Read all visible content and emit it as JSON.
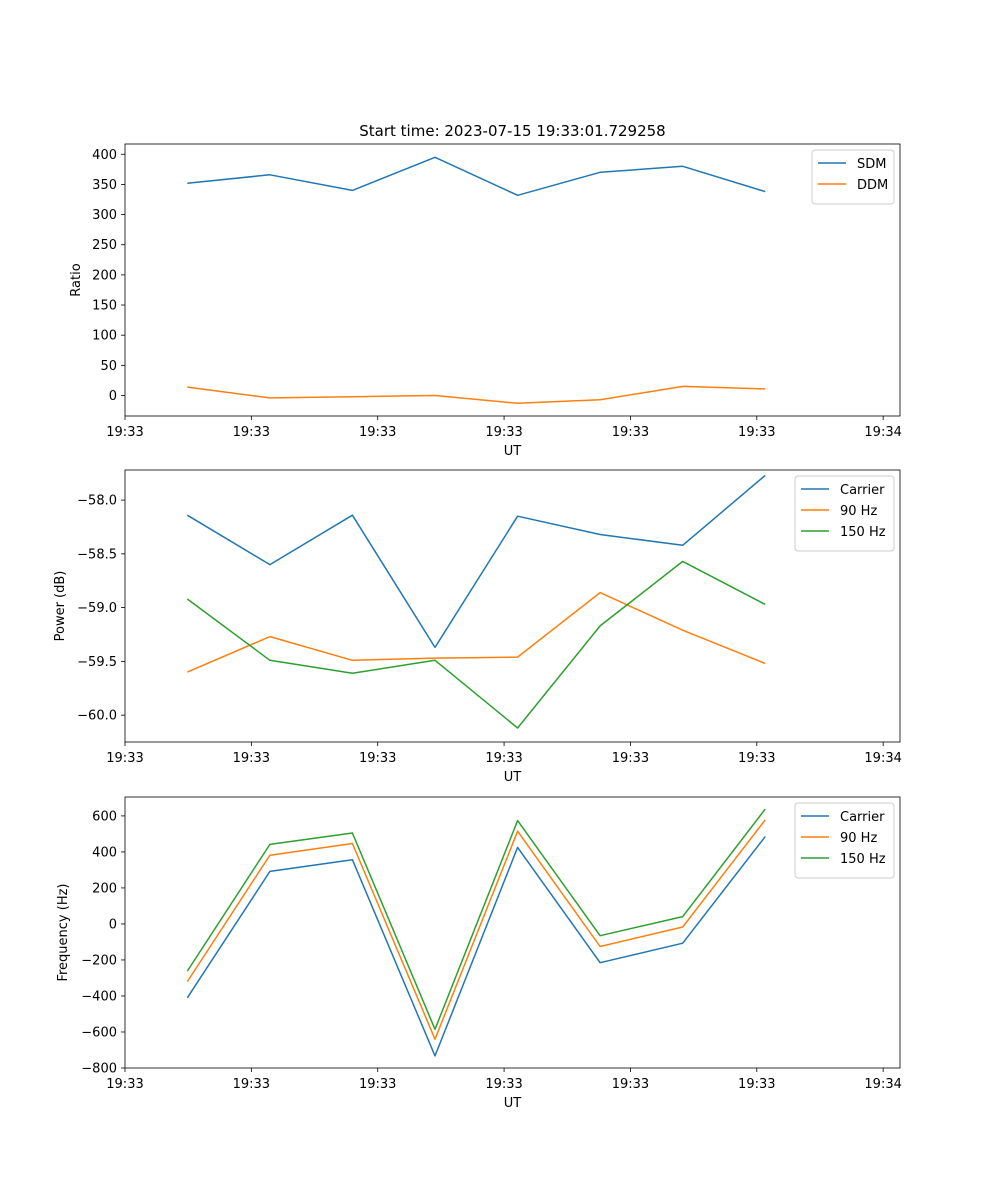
{
  "chart_data": [
    {
      "type": "line",
      "title": "Start time: 2023-07-15 19:33:01.729258",
      "xlabel": "UT",
      "ylabel": "Ratio",
      "xlim": [
        0,
        46
      ],
      "ylim": [
        -34,
        417
      ],
      "x_tick_values": [
        0,
        7.5,
        15,
        22.5,
        30,
        37.5,
        45
      ],
      "x_tick_labels": [
        "19:33",
        "19:33",
        "19:33",
        "19:33",
        "19:33",
        "19:33",
        "19:34"
      ],
      "y_tick_values": [
        0,
        50,
        100,
        150,
        200,
        250,
        300,
        350,
        400
      ],
      "y_tick_labels": [
        "0",
        "50",
        "100",
        "150",
        "200",
        "250",
        "300",
        "350",
        "400"
      ],
      "x": [
        3.7,
        8.6,
        13.5,
        18.4,
        23.3,
        28.2,
        33.1,
        38.0
      ],
      "series": [
        {
          "name": "SDM",
          "color": "#1f77b4",
          "values": [
            352,
            366,
            340,
            395,
            332,
            370,
            380,
            338
          ]
        },
        {
          "name": "DDM",
          "color": "#ff7f0e",
          "values": [
            14,
            -4,
            -2,
            0,
            -13,
            -7,
            15,
            11
          ]
        }
      ],
      "legend": "upper right",
      "grid": false
    },
    {
      "type": "line",
      "title": "",
      "xlabel": "UT",
      "ylabel": "Power (dB)",
      "xlim": [
        0,
        46
      ],
      "ylim": [
        -60.25,
        -57.72
      ],
      "x_tick_values": [
        0,
        7.5,
        15,
        22.5,
        30,
        37.5,
        45
      ],
      "x_tick_labels": [
        "19:33",
        "19:33",
        "19:33",
        "19:33",
        "19:33",
        "19:33",
        "19:34"
      ],
      "y_tick_values": [
        -60.0,
        -59.5,
        -59.0,
        -58.5,
        -58.0
      ],
      "y_tick_labels": [
        "−60.0",
        "−59.5",
        "−59.0",
        "−58.5",
        "−58.0"
      ],
      "x": [
        3.7,
        8.6,
        13.5,
        18.4,
        23.3,
        28.2,
        33.1,
        38.0
      ],
      "series": [
        {
          "name": "Carrier",
          "color": "#1f77b4",
          "values": [
            -58.14,
            -58.6,
            -58.14,
            -59.37,
            -58.15,
            -58.32,
            -58.42,
            -57.77
          ]
        },
        {
          "name": "90 Hz",
          "color": "#ff7f0e",
          "values": [
            -59.6,
            -59.27,
            -59.49,
            -59.47,
            -59.46,
            -58.86,
            -59.21,
            -59.52
          ]
        },
        {
          "name": "150 Hz",
          "color": "#2ca02c",
          "values": [
            -58.92,
            -59.49,
            -59.61,
            -59.49,
            -60.12,
            -59.17,
            -58.57,
            -58.97
          ]
        }
      ],
      "legend": "upper right",
      "grid": false
    },
    {
      "type": "line",
      "title": "",
      "xlabel": "UT",
      "ylabel": "Frequency (Hz)",
      "xlim": [
        0,
        46
      ],
      "ylim": [
        -800,
        705
      ],
      "x_tick_values": [
        0,
        7.5,
        15,
        22.5,
        30,
        37.5,
        45
      ],
      "x_tick_labels": [
        "19:33",
        "19:33",
        "19:33",
        "19:33",
        "19:33",
        "19:33",
        "19:34"
      ],
      "y_tick_values": [
        -800,
        -600,
        -400,
        -200,
        0,
        200,
        400,
        600
      ],
      "y_tick_labels": [
        "−800",
        "−600",
        "−400",
        "−200",
        "0",
        "200",
        "400",
        "600"
      ],
      "x": [
        3.7,
        8.6,
        13.5,
        18.4,
        23.3,
        28.2,
        33.1,
        38.0
      ],
      "series": [
        {
          "name": "Carrier",
          "color": "#1f77b4",
          "values": [
            -410,
            292,
            357,
            -733,
            425,
            -215,
            -107,
            485
          ]
        },
        {
          "name": "90 Hz",
          "color": "#ff7f0e",
          "values": [
            -320,
            382,
            447,
            -640,
            515,
            -125,
            -17,
            578
          ]
        },
        {
          "name": "150 Hz",
          "color": "#2ca02c",
          "values": [
            -262,
            442,
            505,
            -585,
            574,
            -65,
            41,
            638
          ]
        }
      ],
      "legend": "upper right",
      "grid": false
    }
  ]
}
